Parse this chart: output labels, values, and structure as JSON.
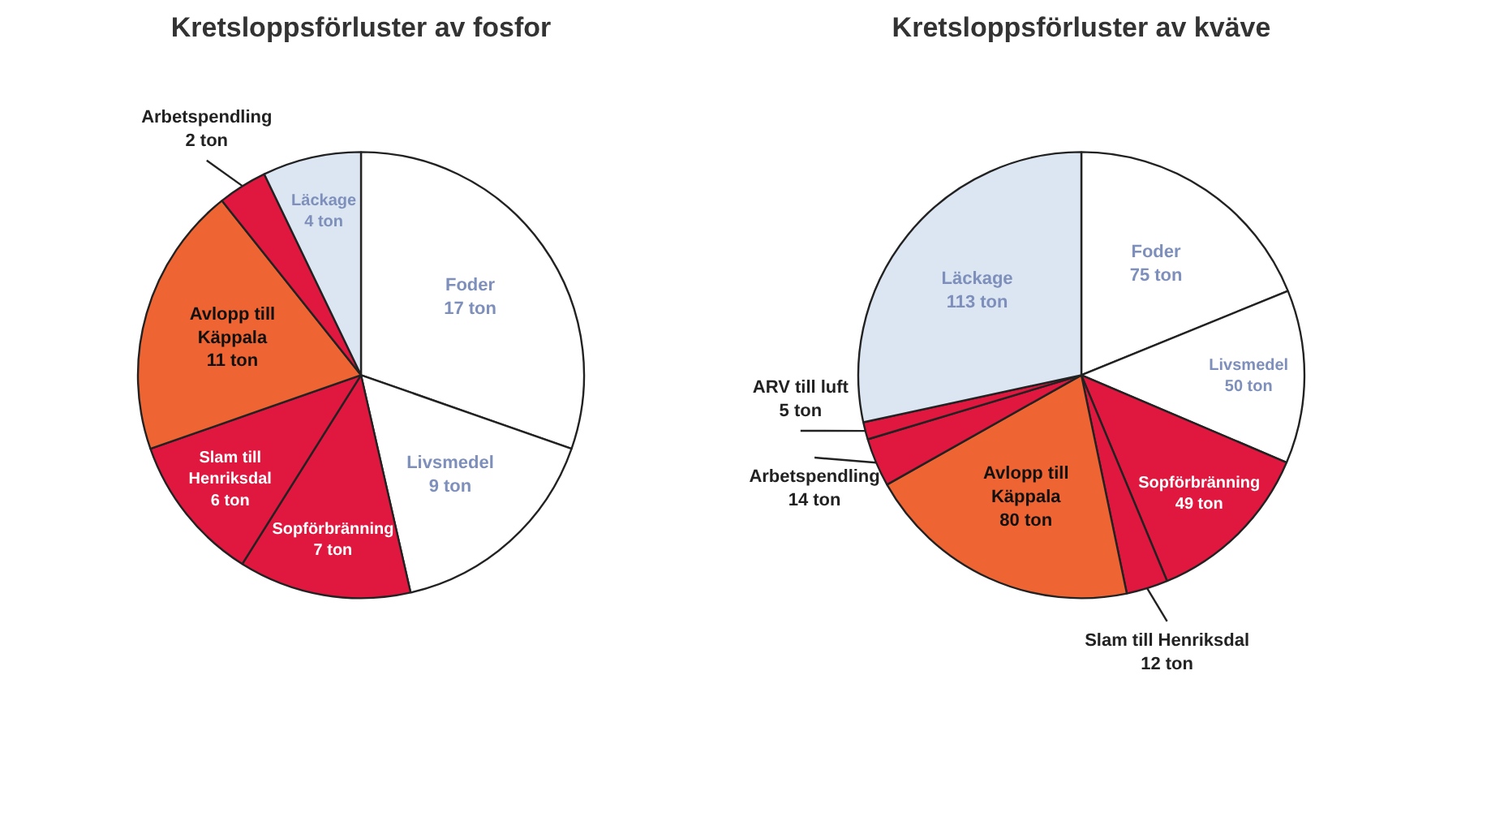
{
  "chart_data": [
    {
      "type": "pie",
      "title": "Kretsloppsförluster av fosfor",
      "categories": [
        "Foder",
        "Livsmedel",
        "Sopförbränning",
        "Slam till Henriksdal",
        "Avlopp till Käppala",
        "Arbetspendling",
        "Läckage"
      ],
      "values": [
        17,
        9,
        7,
        6,
        11,
        2,
        4
      ],
      "value_labels": [
        "17 ton",
        "9 ton",
        "7 ton",
        "6 ton",
        "11 ton",
        "2 ton",
        "4 ton"
      ],
      "colors": [
        "#ffffff",
        "#ffffff",
        "#e0173f",
        "#e0173f",
        "#ef6433",
        "#e0173f",
        "#dce6f2"
      ]
    },
    {
      "type": "pie",
      "title": "Kretsloppsförluster av kväve",
      "categories": [
        "Foder",
        "Livsmedel",
        "Sopförbränning",
        "Slam till Henriksdal",
        "Avlopp till Käppala",
        "Arbetspendling",
        "ARV till luft",
        "Läckage"
      ],
      "values": [
        75,
        50,
        49,
        12,
        80,
        14,
        5,
        113
      ],
      "value_labels": [
        "75 ton",
        "50 ton",
        "49 ton",
        "12 ton",
        "80 ton",
        "14 ton",
        "5 ton",
        "113 ton"
      ],
      "colors": [
        "#ffffff",
        "#ffffff",
        "#e0173f",
        "#e0173f",
        "#ef6433",
        "#e0173f",
        "#e0173f",
        "#dce6f2"
      ]
    }
  ]
}
